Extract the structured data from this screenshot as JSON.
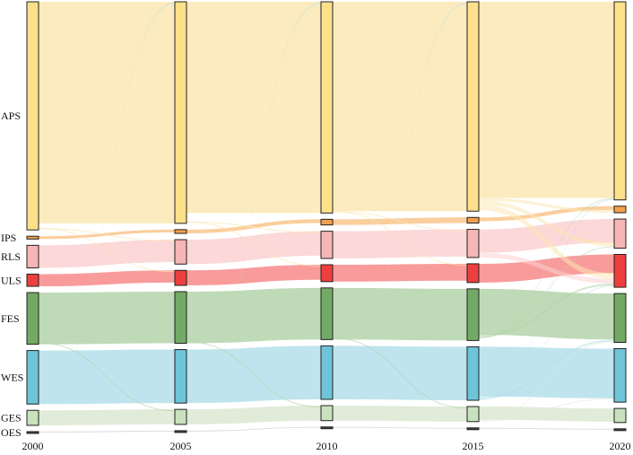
{
  "chart_data": {
    "type": "sankey",
    "title": "",
    "years": [
      "2000",
      "2005",
      "2010",
      "2015",
      "2020"
    ],
    "categories": [
      {
        "code": "APS",
        "fill": "#fbe7b3",
        "node": "#fde08a"
      },
      {
        "code": "IPS",
        "fill": "#f9c58c",
        "node": "#f2a04d"
      },
      {
        "code": "RLS",
        "fill": "#fcd1d1",
        "node": "#f7b6b6"
      },
      {
        "code": "ULS",
        "fill": "#f88a8a",
        "node": "#ee3f3f"
      },
      {
        "code": "FES",
        "fill": "#b4d3aa",
        "node": "#72aa65"
      },
      {
        "code": "WES",
        "fill": "#b4dfea",
        "node": "#6ec4d8"
      },
      {
        "code": "GES",
        "fill": "#dbe9d2",
        "node": "#c8e2bd"
      },
      {
        "code": "OES",
        "fill": "#d8d8d8",
        "node": "#444444"
      }
    ],
    "values": {
      "APS": [
        243,
        236,
        225,
        223,
        211
      ],
      "IPS": [
        3,
        4,
        6,
        6,
        7
      ],
      "RLS": [
        24,
        26,
        29,
        30,
        31
      ],
      "ULS": [
        13,
        16,
        18,
        20,
        35
      ],
      "FES": [
        55,
        55,
        55,
        55,
        52
      ],
      "WES": [
        57,
        57,
        57,
        57,
        57
      ],
      "GES": [
        16,
        16,
        16,
        16,
        15
      ],
      "OES": [
        1,
        1,
        1,
        1,
        1
      ]
    },
    "transitions_2015_2020": [
      {
        "from": "APS",
        "to": "IPS",
        "value": 3
      },
      {
        "from": "APS",
        "to": "RLS",
        "value": 4
      },
      {
        "from": "APS",
        "to": "ULS",
        "value": 6
      },
      {
        "from": "RLS",
        "to": "ULS",
        "value": 5
      },
      {
        "from": "FES",
        "to": "ULS",
        "value": 2
      },
      {
        "from": "FES",
        "to": "RLS",
        "value": 1
      },
      {
        "from": "WES",
        "to": "ULS",
        "value": 1
      },
      {
        "from": "WES",
        "to": "FES",
        "value": 2
      },
      {
        "from": "GES",
        "to": "FES",
        "value": 1
      },
      {
        "from": "GES",
        "to": "WES",
        "value": 1
      },
      {
        "from": "FES",
        "to": "APS",
        "value": 1
      },
      {
        "from": "WES",
        "to": "APS",
        "value": 1
      }
    ],
    "legend": "none",
    "grid": false
  }
}
